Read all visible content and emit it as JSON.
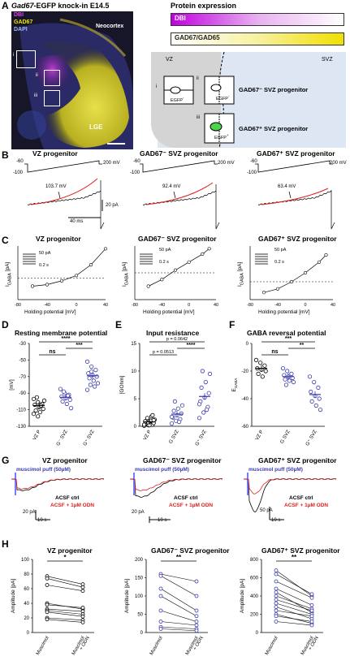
{
  "panels": {
    "A": "A",
    "B": "B",
    "C": "C",
    "D": "D",
    "E": "E",
    "F": "F",
    "G": "G",
    "H": "H"
  },
  "A": {
    "title_gene": "Gad67",
    "title_rest": "-EGFP knock-in E14.5",
    "channel_dbi": "DBI",
    "channel_gad67": "GAD67",
    "channel_dapi": "DAPI",
    "neocortex": "Neocortex",
    "lge": "LGE",
    "roi": [
      "i",
      "ii",
      "iii"
    ],
    "protein_title": "Protein expression",
    "bar_dbi": "DBI",
    "bar_gad": "GAD67/GAD65",
    "vz": "VZ",
    "svz": "SVZ",
    "cell_i": "EGFP",
    "cell_ii": "EGFP",
    "cell_iii": "EGFP",
    "label_ii": "GAD67⁻ SVZ progenitor",
    "label_iii": "GAD67⁺ SVZ progenitor",
    "roman": [
      "i",
      "ii",
      "iii"
    ],
    "colors": {
      "dbi": "#d000e0",
      "gad": "#f0e800",
      "egfp": "#4cd64c",
      "vz_bg": "#d9d9d9",
      "svz_bg": "#dfe6f3"
    }
  },
  "B": {
    "titles": [
      "VZ progenitor",
      "GAD67⁻ SVZ progenitor",
      "GAD67⁺ SVZ progenitor"
    ],
    "v_top": "200 mV",
    "v_start": "-60",
    "v_low": "-100",
    "thresholds": [
      "103.7 mV",
      "92.4 mV",
      "63.4 mV"
    ],
    "scale_i": "20 pA",
    "scale_t": "40 ms"
  },
  "C": {
    "titles": [
      "VZ progenitor",
      "GAD67⁻ SVZ progenitor",
      "GAD67⁺ SVZ progenitor"
    ],
    "ylabel": "I",
    "ylabel_sub": "GABA",
    "ylabel_unit": " [pA]",
    "xlabel": "Holding potential [mV]",
    "inset_i": "50 pA",
    "inset_t": "0.2 s"
  },
  "chart_data": [
    {
      "type": "scatter",
      "title": "Resting membrane potential",
      "ylabel": "[mV]",
      "categories": [
        "VZ P",
        "G⁻ SVZ",
        "G⁺ SVZ"
      ],
      "ylim": [
        -130,
        -30
      ],
      "yticks": [
        -130,
        -110,
        -90,
        -70,
        -50,
        -30
      ],
      "series": [
        {
          "values": [
            -97,
            -101,
            -103,
            -104,
            -107,
            -109,
            -111,
            -113,
            -99,
            -95,
            -105,
            -115,
            -118
          ]
        },
        {
          "values": [
            -85,
            -90,
            -92,
            -94,
            -96,
            -98,
            -100,
            -103,
            -108,
            -88,
            -93
          ]
        },
        {
          "values": [
            -52,
            -58,
            -62,
            -66,
            -68,
            -70,
            -72,
            -75,
            -78,
            -80,
            -82,
            -86,
            -64
          ]
        }
      ],
      "means": [
        -105,
        -95,
        -69
      ],
      "sig": [
        {
          "label": "ns"
        },
        {
          "label": "****"
        },
        {
          "label": "***"
        }
      ]
    },
    {
      "type": "scatter",
      "title": "Input resistance",
      "ylabel": "[GOhm]",
      "categories": [
        "VZ P",
        "G SVZ",
        "G⁺ SVZ"
      ],
      "ylim": [
        0,
        15
      ],
      "yticks": [
        0,
        5,
        10,
        15
      ],
      "series": [
        {
          "values": [
            0.1,
            0.2,
            0.3,
            0.4,
            0.5,
            0.6,
            0.8,
            1.0,
            1.2,
            1.5,
            1.8,
            0.3,
            0.7,
            2.0,
            0.9,
            0.2,
            1.1
          ]
        },
        {
          "values": [
            0.5,
            1.0,
            1.3,
            1.6,
            2.0,
            2.3,
            2.8,
            3.2,
            3.8,
            4.5,
            0.8,
            1.7
          ]
        },
        {
          "values": [
            1.5,
            2.5,
            3.5,
            4.5,
            5.2,
            6.0,
            7.0,
            8.0,
            9.5,
            10.0,
            3.0,
            4.0
          ]
        }
      ],
      "means": [
        0.8,
        2.2,
        5.4
      ],
      "sig": [
        {
          "label": "p = 0.0513"
        },
        {
          "label": "p = 0.0642"
        },
        {
          "label": "****"
        }
      ]
    },
    {
      "type": "scatter",
      "title": "GABA reversal potential",
      "ylabel": "E",
      "ylabel_sub": "GABA",
      "categories": [
        "VZ P",
        "G SVZ",
        "G⁺ SVZ"
      ],
      "ylim": [
        -60,
        0
      ],
      "yticks": [
        -60,
        -40,
        -20,
        0
      ],
      "series": [
        {
          "values": [
            -12,
            -14,
            -16,
            -18,
            -19,
            -20,
            -22,
            -24
          ]
        },
        {
          "values": [
            -18,
            -20,
            -22,
            -23,
            -24,
            -25,
            -26,
            -27,
            -28,
            -30
          ]
        },
        {
          "values": [
            -24,
            -28,
            -32,
            -35,
            -38,
            -40,
            -42,
            -45,
            -48
          ]
        }
      ],
      "means": [
        -18,
        -24,
        -37
      ],
      "sig": [
        {
          "label": "ns"
        },
        {
          "label": "***"
        },
        {
          "label": "**"
        }
      ]
    },
    {
      "type": "line",
      "title": "VZ progenitor",
      "ylabel": "Amplitude [pA]",
      "categories": [
        "Muscimol",
        "Muscimol\n+ ODN"
      ],
      "ylim": [
        0,
        100
      ],
      "yticks": [
        0,
        20,
        40,
        60,
        80,
        100
      ],
      "pairs": [
        [
          77,
          66
        ],
        [
          74,
          62
        ],
        [
          65,
          57
        ],
        [
          40,
          32
        ],
        [
          38,
          34
        ],
        [
          32,
          29
        ],
        [
          30,
          25
        ],
        [
          28,
          22
        ],
        [
          20,
          17
        ],
        [
          18,
          14
        ]
      ],
      "sig": "*"
    },
    {
      "type": "line",
      "title": "GAD67⁻ SVZ progenitor",
      "ylabel": "Amplitude [pA]",
      "categories": [
        "Muscimol",
        "Muscimol\n+ ODN"
      ],
      "ylim": [
        0,
        200
      ],
      "yticks": [
        0,
        50,
        100,
        150,
        200
      ],
      "pairs": [
        [
          160,
          140
        ],
        [
          155,
          100
        ],
        [
          120,
          60
        ],
        [
          100,
          45
        ],
        [
          60,
          30
        ],
        [
          30,
          20
        ],
        [
          15,
          10
        ],
        [
          10,
          5
        ]
      ],
      "sig": "**"
    },
    {
      "type": "line",
      "title": "GAD67⁺ SVZ progenitor",
      "ylabel": "Amplitude [pA]",
      "categories": [
        "Muscimol",
        "Muscimol\n+ ODN"
      ],
      "ylim": [
        0,
        800
      ],
      "yticks": [
        0,
        200,
        400,
        600,
        800
      ],
      "pairs": [
        [
          680,
          400
        ],
        [
          640,
          420
        ],
        [
          560,
          380
        ],
        [
          480,
          300
        ],
        [
          440,
          220
        ],
        [
          400,
          260
        ],
        [
          360,
          240
        ],
        [
          320,
          200
        ],
        [
          280,
          150
        ],
        [
          240,
          180
        ],
        [
          200,
          100
        ],
        [
          180,
          120
        ],
        [
          120,
          80
        ]
      ],
      "sig": "**"
    }
  ],
  "G": {
    "titles": [
      "VZ progenitor",
      "GAD67⁻ SVZ progenitor",
      "GAD67⁺ SVZ progenitor"
    ],
    "puff": "muscimol puff (50µM)",
    "ctrl": "ACSF ctrl",
    "odn": "ACSF + 1µM ODN",
    "scales": [
      [
        "20 pA",
        "10 s"
      ],
      [
        "20 pA",
        "10 s"
      ],
      [
        "50 pA",
        "10 s"
      ]
    ]
  },
  "colors": {
    "red": "#e02020",
    "blue": "#3a3aaa",
    "purple_bar": "#7a7aff"
  }
}
